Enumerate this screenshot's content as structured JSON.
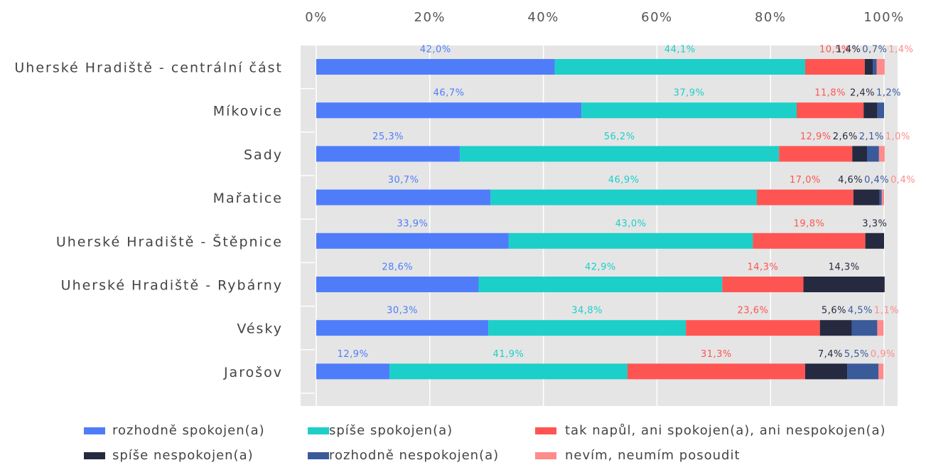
{
  "chart_data": {
    "type": "stacked-bar-horizontal",
    "categories": [
      "Uherské Hradiště - centrální část",
      "Míkovice",
      "Sady",
      "Mařatice",
      "Uherské Hradiště - Štěpnice",
      "Uherské Hradiště - Rybárny",
      "Vésky",
      "Jarošov"
    ],
    "series": [
      {
        "name": "rozhodně spokojen(a)",
        "color": "#4f7dfa",
        "values": [
          42.0,
          46.7,
          25.3,
          30.7,
          33.9,
          28.6,
          30.3,
          12.9
        ],
        "value_labels": [
          "42,0%",
          "46,7%",
          "25,3%",
          "30,7%",
          "33,9%",
          "28,6%",
          "30,3%",
          "12,9%"
        ]
      },
      {
        "name": "spíše spokojen(a)",
        "color": "#1ccfc9",
        "values": [
          44.1,
          37.9,
          56.2,
          46.9,
          43.0,
          42.9,
          34.8,
          41.9
        ],
        "value_labels": [
          "44,1%",
          "37,9%",
          "56,2%",
          "46,9%",
          "43,0%",
          "42,9%",
          "34,8%",
          "41,9%"
        ]
      },
      {
        "name": "tak napůl, ani spokojen(a), ani nespokojen(a)",
        "color": "#ff5552",
        "values": [
          10.5,
          11.8,
          12.9,
          17.0,
          19.8,
          14.3,
          23.6,
          31.3
        ],
        "value_labels": [
          "10,5%",
          "11,8%",
          "12,9%",
          "17,0%",
          "19,8%",
          "14,3%",
          "23,6%",
          "31,3%"
        ]
      },
      {
        "name": "spíše nespokojen(a)",
        "color": "#252a40",
        "values": [
          1.4,
          2.4,
          2.6,
          4.6,
          3.3,
          14.3,
          5.6,
          7.4
        ],
        "value_labels": [
          "1,4%",
          "2,4%",
          "2,6%",
          "4,6%",
          "3,3%",
          "14,3%",
          "5,6%",
          "7,4%"
        ]
      },
      {
        "name": "rozhodně nespokojen(a)",
        "color": "#3a5a9a",
        "values": [
          0.7,
          1.2,
          2.1,
          0.4,
          null,
          null,
          4.5,
          5.5
        ],
        "value_labels": [
          "0,7%",
          "1,2%",
          "2,1%",
          "0,4%",
          null,
          null,
          "4,5%",
          "5,5%"
        ]
      },
      {
        "name": "nevím, neumím posoudit",
        "color": "#ff8b8b",
        "values": [
          1.4,
          null,
          1.0,
          0.4,
          null,
          null,
          1.1,
          0.9
        ],
        "value_labels": [
          "1,4%",
          null,
          "1,0%",
          "0,4%",
          null,
          null,
          "1,1%",
          "0,9%"
        ]
      }
    ],
    "xlim": [
      0,
      100
    ],
    "xticks": [
      {
        "value": 0,
        "label": "0%"
      },
      {
        "value": 20,
        "label": "20%"
      },
      {
        "value": 40,
        "label": "40%"
      },
      {
        "value": 60,
        "label": "60%"
      },
      {
        "value": 80,
        "label": "80%"
      },
      {
        "value": 100,
        "label": "100%"
      }
    ],
    "grid": true,
    "legend": "bottom"
  }
}
